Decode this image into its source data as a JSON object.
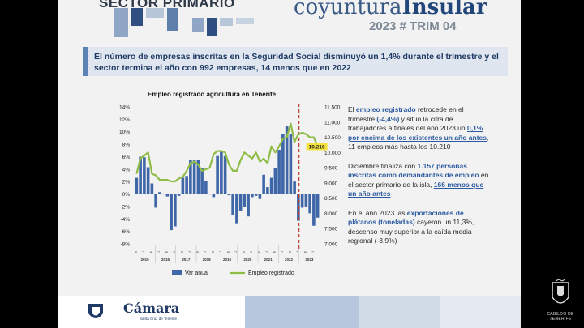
{
  "header": {
    "section": "SECTOR PRIMARIO",
    "brand_a": "coyuntura",
    "brand_b": "Insular",
    "edition": "2023 # TRIM 04"
  },
  "headline": "El número de empresas inscritas en la Seguridad Social disminuyó un 1,4% durante el trimestre y el sector termina el año con 992 empresas, 14 menos que en 2022",
  "notes": {
    "p1": [
      "El ",
      "empleo registrado",
      " retrocede en el trimestre ",
      "(-4,4%)",
      " y situó la cifra de trabajadores a finales del año 2023 un ",
      "0,1% por encima de los existentes un año antes",
      ", 11 empleos más hasta los 10.210"
    ],
    "p2": [
      "Diciembre finaliza con ",
      "1.157 personas inscritas como demandantes de empleo",
      " en el sector primario de la isla, ",
      "166 menos que un año antes"
    ],
    "p3": [
      "En el año 2023 las ",
      "exportaciones de plátanos (toneladas)",
      " cayeron un 11,3%, descenso muy superior a la caída media regional (-3,9%)"
    ]
  },
  "footer": {
    "camara": "Cámara",
    "camara_sub": "Santa Cruz de Tenerife",
    "cabildo": "CABILDO DE TENERIFE"
  },
  "colors": {
    "bar": "#3f67a8",
    "line": "#8fbc45",
    "dash": "#c0392b",
    "label_bg": "#f4e23a"
  },
  "chart_data": {
    "type": "bar+line",
    "title": "Empleo registrado agricultura en Tenerife",
    "months": [
      "E",
      "F",
      "M",
      "A",
      "M",
      "J",
      "J",
      "A",
      "S",
      "O",
      "N",
      "D"
    ],
    "years": [
      "2015",
      "2016",
      "2017",
      "2018",
      "2019",
      "2020",
      "2021",
      "2022",
      "2023"
    ],
    "left_axis": {
      "min": -8,
      "max": 14,
      "ticks": [
        "14%",
        "12%",
        "10%",
        "8%",
        "6%",
        "4%",
        "2%",
        "0%",
        "-2%",
        "-4%",
        "-6%",
        "-8%"
      ]
    },
    "right_axis": {
      "min": 7000,
      "max": 11500,
      "ticks": [
        "11.500",
        "11.000",
        "10.500",
        "10.000",
        "9.500",
        "9.000",
        "8.500",
        "8.000",
        "7.500",
        "7.000"
      ]
    },
    "end_label": "10.210",
    "series": [
      {
        "name": "Var anual",
        "axis": "left",
        "values": [
          2.6,
          6.0,
          5.9,
          4.3,
          1.7,
          -2.2,
          0.3,
          0.0,
          -0.4,
          -5.8,
          -5.2,
          -0.3,
          2.6,
          2.9,
          5.5,
          5.5,
          5.5,
          4.2,
          2.1,
          0.0,
          -0.5,
          6.1,
          6.9,
          6.1,
          -0.2,
          -3.4,
          -4.7,
          -2.7,
          -2.1,
          -3.6,
          -0.5,
          -0.3,
          -0.8,
          3.1,
          1.1,
          2.6,
          4.2,
          7.1,
          9.7,
          10.9,
          9.7,
          2.0,
          -4.3,
          -2.2,
          -2.0,
          -3.1,
          -5.1,
          -3.8
        ]
      },
      {
        "name": "Empleo registrado",
        "axis": "right",
        "values": [
          9300,
          9800,
          9900,
          10000,
          9300,
          9250,
          9100,
          9100,
          9100,
          9050,
          9050,
          9150,
          9200,
          9400,
          9650,
          9700,
          9600,
          9400,
          9450,
          9500,
          9950,
          10050,
          10050,
          10000,
          9600,
          9400,
          9400,
          9750,
          10000,
          9900,
          9800,
          10000,
          9700,
          9800,
          9650,
          10200,
          10000,
          10200,
          10450,
          10500,
          10950,
          10350,
          10600,
          10650,
          10600,
          10500,
          10500,
          10210
        ]
      }
    ]
  }
}
